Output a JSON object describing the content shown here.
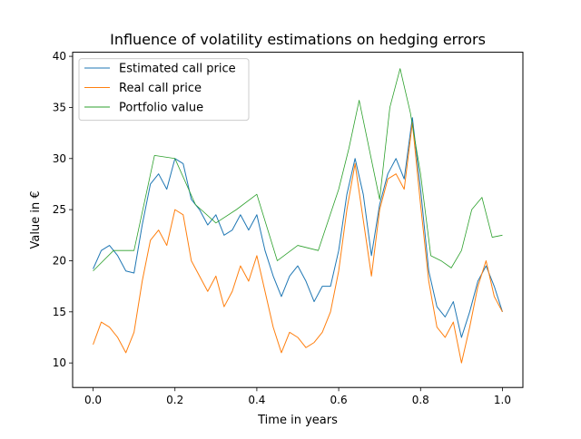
{
  "chart_data": {
    "type": "line",
    "title": "Influence of volatility estimations on hedging errors",
    "xlabel": "Time in years",
    "ylabel": "Value in €",
    "xlim": [
      -0.05,
      1.05
    ],
    "ylim": [
      7.6,
      40.4
    ],
    "xticks": [
      0.0,
      0.2,
      0.4,
      0.6,
      0.8,
      1.0
    ],
    "xtick_labels": [
      "0.0",
      "0.2",
      "0.4",
      "0.6",
      "0.8",
      "1.0"
    ],
    "yticks": [
      10,
      15,
      20,
      25,
      30,
      35,
      40
    ],
    "ytick_labels": [
      "10",
      "15",
      "20",
      "25",
      "30",
      "35",
      "40"
    ],
    "grid": false,
    "legend_position": "top-left",
    "series": [
      {
        "name": "Estimated call price",
        "color": "#1f77b4",
        "x": [
          0.0,
          0.02,
          0.04,
          0.06,
          0.08,
          0.1,
          0.12,
          0.14,
          0.16,
          0.18,
          0.2,
          0.22,
          0.24,
          0.26,
          0.28,
          0.3,
          0.32,
          0.34,
          0.36,
          0.38,
          0.4,
          0.42,
          0.44,
          0.46,
          0.48,
          0.5,
          0.52,
          0.54,
          0.56,
          0.58,
          0.6,
          0.62,
          0.64,
          0.66,
          0.68,
          0.7,
          0.72,
          0.74,
          0.76,
          0.78,
          0.8,
          0.82,
          0.84,
          0.86,
          0.88,
          0.9,
          0.92,
          0.94,
          0.96,
          0.98,
          1.0
        ],
        "y": [
          19.2,
          21.0,
          21.5,
          20.5,
          19.0,
          18.8,
          23.5,
          27.5,
          28.5,
          27.0,
          30.0,
          29.5,
          26.0,
          25.0,
          23.5,
          24.5,
          22.5,
          23.0,
          24.5,
          23.0,
          24.5,
          21.0,
          18.5,
          16.5,
          18.5,
          19.5,
          18.0,
          16.0,
          17.5,
          17.5,
          21.0,
          26.5,
          30.0,
          26.5,
          20.5,
          25.5,
          28.5,
          30.0,
          28.0,
          34.0,
          27.0,
          19.0,
          15.5,
          14.5,
          16.0,
          12.5,
          15.0,
          18.0,
          19.5,
          17.5,
          15.0
        ]
      },
      {
        "name": "Real call price",
        "color": "#ff7f0e",
        "x": [
          0.0,
          0.02,
          0.04,
          0.06,
          0.08,
          0.1,
          0.12,
          0.14,
          0.16,
          0.18,
          0.2,
          0.22,
          0.24,
          0.26,
          0.28,
          0.3,
          0.32,
          0.34,
          0.36,
          0.38,
          0.4,
          0.42,
          0.44,
          0.46,
          0.48,
          0.5,
          0.52,
          0.54,
          0.56,
          0.58,
          0.6,
          0.62,
          0.64,
          0.66,
          0.68,
          0.7,
          0.72,
          0.74,
          0.76,
          0.78,
          0.8,
          0.82,
          0.84,
          0.86,
          0.88,
          0.9,
          0.92,
          0.94,
          0.96,
          0.98,
          1.0
        ],
        "y": [
          11.8,
          14.0,
          13.5,
          12.5,
          11.0,
          13.0,
          18.0,
          22.0,
          23.0,
          21.5,
          25.0,
          24.5,
          20.0,
          18.5,
          17.0,
          18.5,
          15.5,
          17.0,
          19.5,
          18.0,
          20.5,
          17.0,
          13.5,
          11.0,
          13.0,
          12.5,
          11.5,
          12.0,
          13.0,
          15.0,
          19.0,
          25.0,
          29.5,
          24.0,
          18.5,
          25.0,
          28.0,
          28.5,
          27.0,
          33.5,
          25.5,
          18.0,
          13.5,
          12.5,
          14.0,
          10.0,
          13.5,
          17.5,
          20.0,
          16.5,
          15.0
        ]
      },
      {
        "name": "Portfolio value",
        "color": "#2ca02c",
        "x": [
          0.0,
          0.05,
          0.1,
          0.15,
          0.2,
          0.25,
          0.3,
          0.35,
          0.4,
          0.45,
          0.5,
          0.55,
          0.6,
          0.625,
          0.65,
          0.7,
          0.725,
          0.75,
          0.775,
          0.8,
          0.825,
          0.85,
          0.875,
          0.9,
          0.925,
          0.95,
          0.975,
          1.0
        ],
        "y": [
          19.0,
          21.0,
          21.0,
          30.3,
          30.0,
          25.5,
          23.7,
          25.0,
          26.5,
          20.0,
          21.5,
          21.0,
          27.0,
          31.0,
          35.7,
          26.0,
          35.0,
          38.8,
          34.5,
          28.5,
          20.5,
          20.0,
          19.3,
          21.0,
          25.0,
          26.2,
          22.3,
          22.5
        ]
      }
    ]
  }
}
